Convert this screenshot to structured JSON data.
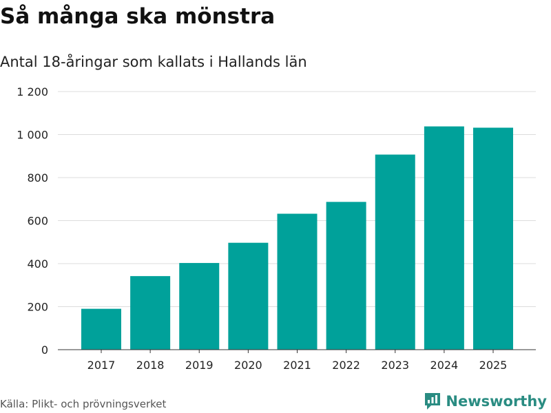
{
  "chart_data": {
    "type": "bar",
    "title": "Så många ska mönstra",
    "subtitle": "Antal 18-åringar som kallats i Hallands län",
    "categories": [
      "2017",
      "2018",
      "2019",
      "2020",
      "2021",
      "2022",
      "2023",
      "2024",
      "2025"
    ],
    "values": [
      190,
      342,
      403,
      497,
      632,
      687,
      907,
      1038,
      1032
    ],
    "ylim": [
      0,
      1200
    ],
    "yticks": [
      0,
      200,
      400,
      600,
      800,
      1000,
      1200
    ],
    "ytick_labels": [
      "0",
      "200",
      "400",
      "600",
      "800",
      "1 000",
      "1 200"
    ],
    "xlabel": "",
    "ylabel": "",
    "grid": true,
    "bar_color": "#00a19a"
  },
  "footer": {
    "source": "Källa: Plikt- och prövningsverket",
    "brand": "Newsworthy",
    "brand_color": "#2a8c82"
  }
}
